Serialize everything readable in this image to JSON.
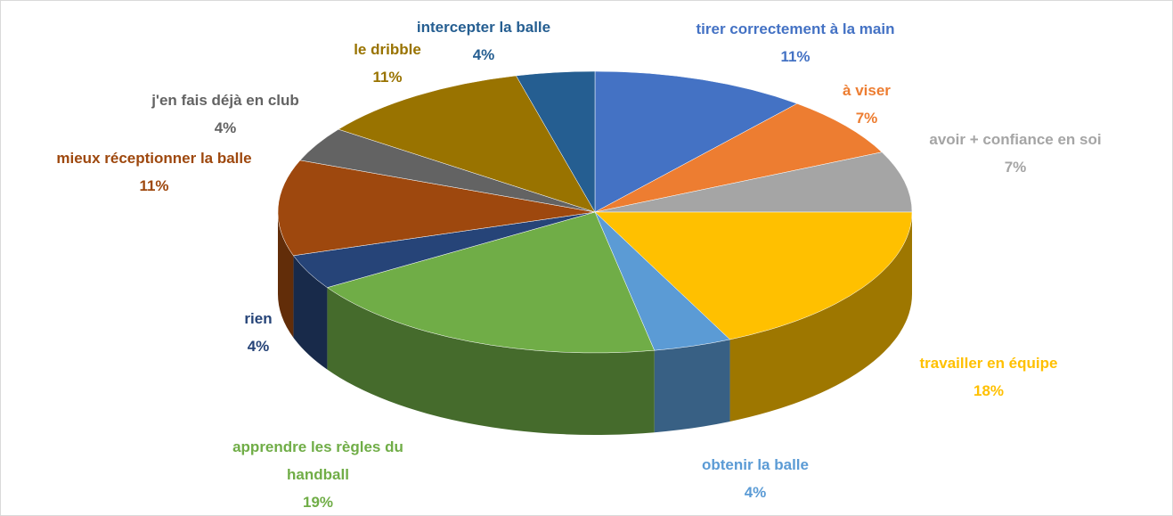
{
  "chart_data": {
    "type": "pie3d",
    "categories": [
      "tirer correctement à la main",
      "à viser",
      "avoir + confiance en soi",
      "travailler en équipe",
      "obtenir la balle",
      "apprendre les règles du handball",
      "rien",
      "mieux réceptionner la balle",
      "j'en fais déjà en club",
      "le dribble",
      "intercepter la balle"
    ],
    "values": [
      11,
      7,
      7,
      18,
      4,
      19,
      4,
      11,
      4,
      11,
      4
    ],
    "value_labels": [
      "11%",
      "7%",
      "7%",
      "18%",
      "4%",
      "19%",
      "4%",
      "11%",
      "4%",
      "11%",
      "4%"
    ],
    "colors": [
      "#4472c4",
      "#ed7d31",
      "#a5a5a5",
      "#ffc000",
      "#5b9bd5",
      "#70ad47",
      "#264478",
      "#9e480e",
      "#636363",
      "#997300",
      "#255e91"
    ]
  }
}
